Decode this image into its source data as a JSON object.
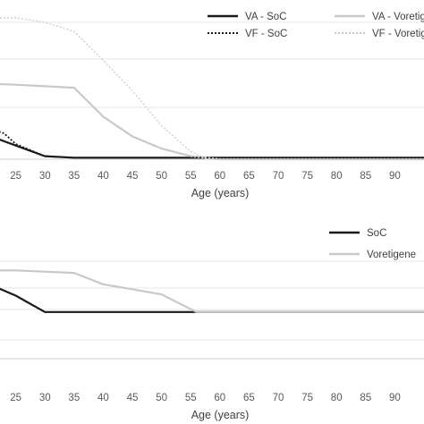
{
  "chart_data": [
    {
      "type": "line",
      "xlabel": "Age (years)",
      "ylabel": "",
      "xlim": [
        18,
        95
      ],
      "ylim": [
        0,
        1
      ],
      "x_ticks": [
        25,
        30,
        35,
        40,
        45,
        50,
        55,
        60,
        65,
        70,
        75,
        80,
        85,
        90
      ],
      "grid": true,
      "legend_position": "top-right",
      "series": [
        {
          "name": "VA - SoC",
          "style": "solid",
          "color": "#1a1a1a",
          "width": 2.2,
          "x": [
            18,
            25,
            30,
            35,
            42,
            95
          ],
          "y": [
            0.19,
            0.09,
            0.02,
            0.01,
            0.01,
            0.01
          ]
        },
        {
          "name": "VA - Voretigene",
          "style": "solid",
          "color": "#c8c8c8",
          "width": 2.2,
          "x": [
            18,
            25,
            30,
            35,
            40,
            45,
            50,
            55,
            60,
            95
          ],
          "y": [
            0.5,
            0.49,
            0.48,
            0.47,
            0.28,
            0.15,
            0.07,
            0.02,
            0.0,
            0.0
          ]
        },
        {
          "name": "VF - SoC",
          "style": "dotted",
          "color": "#1a1a1a",
          "width": 1.8,
          "x": [
            18,
            20,
            23,
            25,
            30,
            35,
            95
          ],
          "y": [
            0.23,
            0.21,
            0.17,
            0.1,
            0.02,
            0.01,
            0.01
          ]
        },
        {
          "name": "VF - Voretigene",
          "style": "dotted",
          "color": "#c8c8c8",
          "width": 1.2,
          "x": [
            18,
            25,
            30,
            35,
            40,
            45,
            50,
            55,
            58,
            95
          ],
          "y": [
            0.93,
            0.93,
            0.9,
            0.84,
            0.65,
            0.45,
            0.22,
            0.05,
            0.0,
            0.0
          ]
        }
      ]
    },
    {
      "type": "line",
      "xlabel": "Age (years)",
      "ylabel": "",
      "xlim": [
        18,
        95
      ],
      "ylim": [
        0,
        1
      ],
      "x_ticks": [
        25,
        30,
        35,
        40,
        45,
        50,
        55,
        60,
        65,
        70,
        75,
        80,
        85,
        90
      ],
      "grid": true,
      "legend_position": "top-right",
      "series": [
        {
          "name": "SoC",
          "style": "solid",
          "color": "#1a1a1a",
          "width": 2.2,
          "x": [
            18,
            25,
            30,
            56,
            95
          ],
          "y": [
            0.64,
            0.5,
            0.37,
            0.37,
            0.37
          ]
        },
        {
          "name": "Voretigene",
          "style": "solid",
          "color": "#c8c8c8",
          "width": 2.2,
          "x": [
            18,
            25,
            30,
            35,
            40,
            45,
            50,
            56,
            95
          ],
          "y": [
            0.7,
            0.7,
            0.69,
            0.68,
            0.59,
            0.55,
            0.51,
            0.37,
            0.37
          ]
        }
      ]
    }
  ]
}
